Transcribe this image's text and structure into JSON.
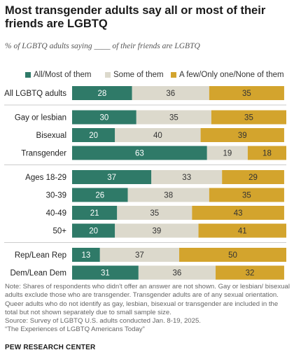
{
  "title": "Most transgender adults say all or most of their friends are LGBTQ",
  "subtitle": "% of LGBTQ adults saying ____ of their friends are LGBTQ",
  "colors": {
    "all_most": "#2f7a68",
    "some": "#dcd9cc",
    "few_none": "#d3a42d",
    "divider": "#bbbbbb"
  },
  "chart_data": {
    "type": "bar",
    "orientation": "horizontal",
    "stacked": true,
    "xlim": [
      0,
      100
    ],
    "legend_position": "top",
    "categories": [
      "All LGBTQ adults",
      "Gay or lesbian",
      "Bisexual",
      "Transgender",
      "Ages 18-29",
      "30-39",
      "40-49",
      "50+",
      "Rep/Lean Rep",
      "Dem/Lean Dem"
    ],
    "groups": [
      [
        0
      ],
      [
        1,
        2,
        3
      ],
      [
        4,
        5,
        6,
        7
      ],
      [
        8,
        9
      ]
    ],
    "series": [
      {
        "name": "All/Most of them",
        "values": [
          28,
          30,
          20,
          63,
          37,
          26,
          21,
          20,
          13,
          31
        ]
      },
      {
        "name": "Some of them",
        "values": [
          36,
          35,
          40,
          19,
          33,
          38,
          35,
          39,
          37,
          36
        ]
      },
      {
        "name": "A few/Only one/None of them",
        "values": [
          35,
          35,
          39,
          18,
          29,
          35,
          43,
          41,
          50,
          32
        ]
      }
    ]
  },
  "notes": {
    "note": "Note: Shares of respondents who didn't offer an answer are not shown. Gay or lesbian/ bisexual adults exclude those who are transgender. Transgender adults are of any sexual orientation. Queer adults who do not identify as gay, lesbian, bisexual or transgender are included in the total but not shown separately due to small sample size.",
    "source": "Source: Survey of LGBTQ U.S. adults conducted Jan. 8-19, 2025.",
    "report": "“The Experiences of LGBTQ Americans Today”"
  },
  "footer": "PEW RESEARCH CENTER"
}
